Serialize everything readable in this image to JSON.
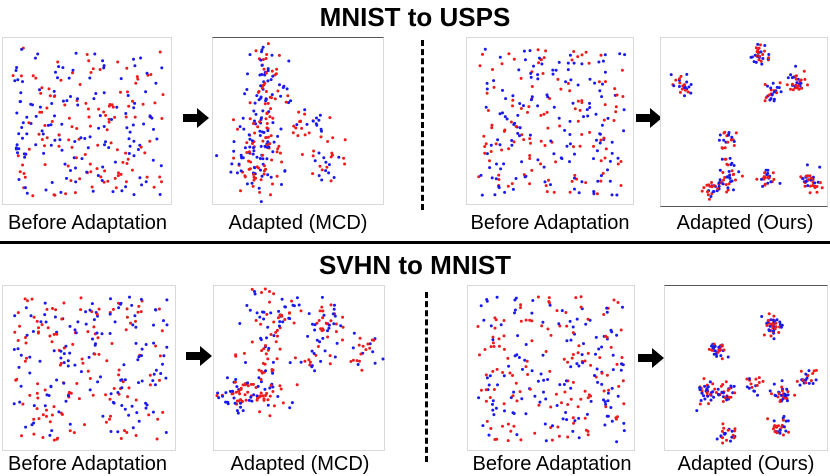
{
  "sections": [
    {
      "title": "MNIST to USPS",
      "panels": [
        {
          "caption": "Before Adaptation",
          "style": "scattered",
          "seed": 11
        },
        {
          "caption": "Adapted (MCD)",
          "style": "loose",
          "seed": 23
        },
        {
          "caption": "Before Adaptation",
          "style": "scattered",
          "seed": 37
        },
        {
          "caption": "Adapted (Ours)",
          "style": "tight",
          "seed": 41
        }
      ]
    },
    {
      "title": "SVHN to MNIST",
      "panels": [
        {
          "caption": "Before Adaptation",
          "style": "scattered",
          "seed": 53
        },
        {
          "caption": "Adapted (MCD)",
          "style": "loose",
          "seed": 67
        },
        {
          "caption": "Before Adaptation",
          "style": "scattered",
          "seed": 71
        },
        {
          "caption": "Adapted (Ours)",
          "style": "tight",
          "seed": 89
        }
      ]
    }
  ],
  "colors": {
    "source": "#ee1c1c",
    "target": "#1a1aee",
    "arrow": "#000000"
  }
}
